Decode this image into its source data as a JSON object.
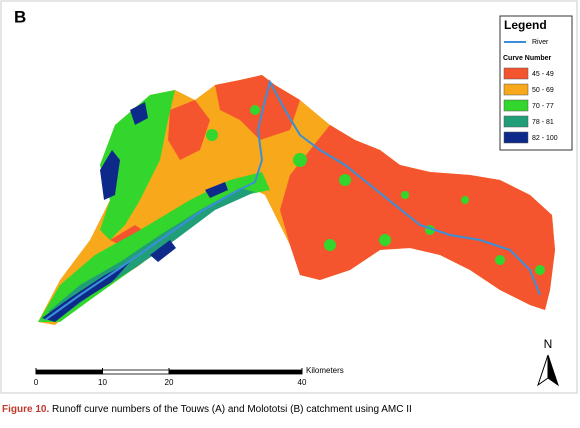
{
  "panel_label": "B",
  "legend": {
    "title": "Legend",
    "river": {
      "label": "River",
      "color": "#3b8fd8"
    },
    "subtitle": "Curve Number",
    "classes": [
      {
        "label": "45 - 49",
        "color": "#f5552e"
      },
      {
        "label": "50 - 69",
        "color": "#f7a81b"
      },
      {
        "label": "70 - 77",
        "color": "#33d62c"
      },
      {
        "label": "78 - 81",
        "color": "#1f9e78"
      },
      {
        "label": "82 - 100",
        "color": "#0d2a8a"
      }
    ]
  },
  "scale_bar": {
    "unit": "Kilometers",
    "ticks": [
      0,
      10,
      20,
      40
    ]
  },
  "north_arrow": {
    "label": "N"
  },
  "caption": {
    "label": "Figure 10.",
    "text": "Runoff curve numbers of the Touws (A) and Molototsi (B) catchment using AMC II"
  }
}
